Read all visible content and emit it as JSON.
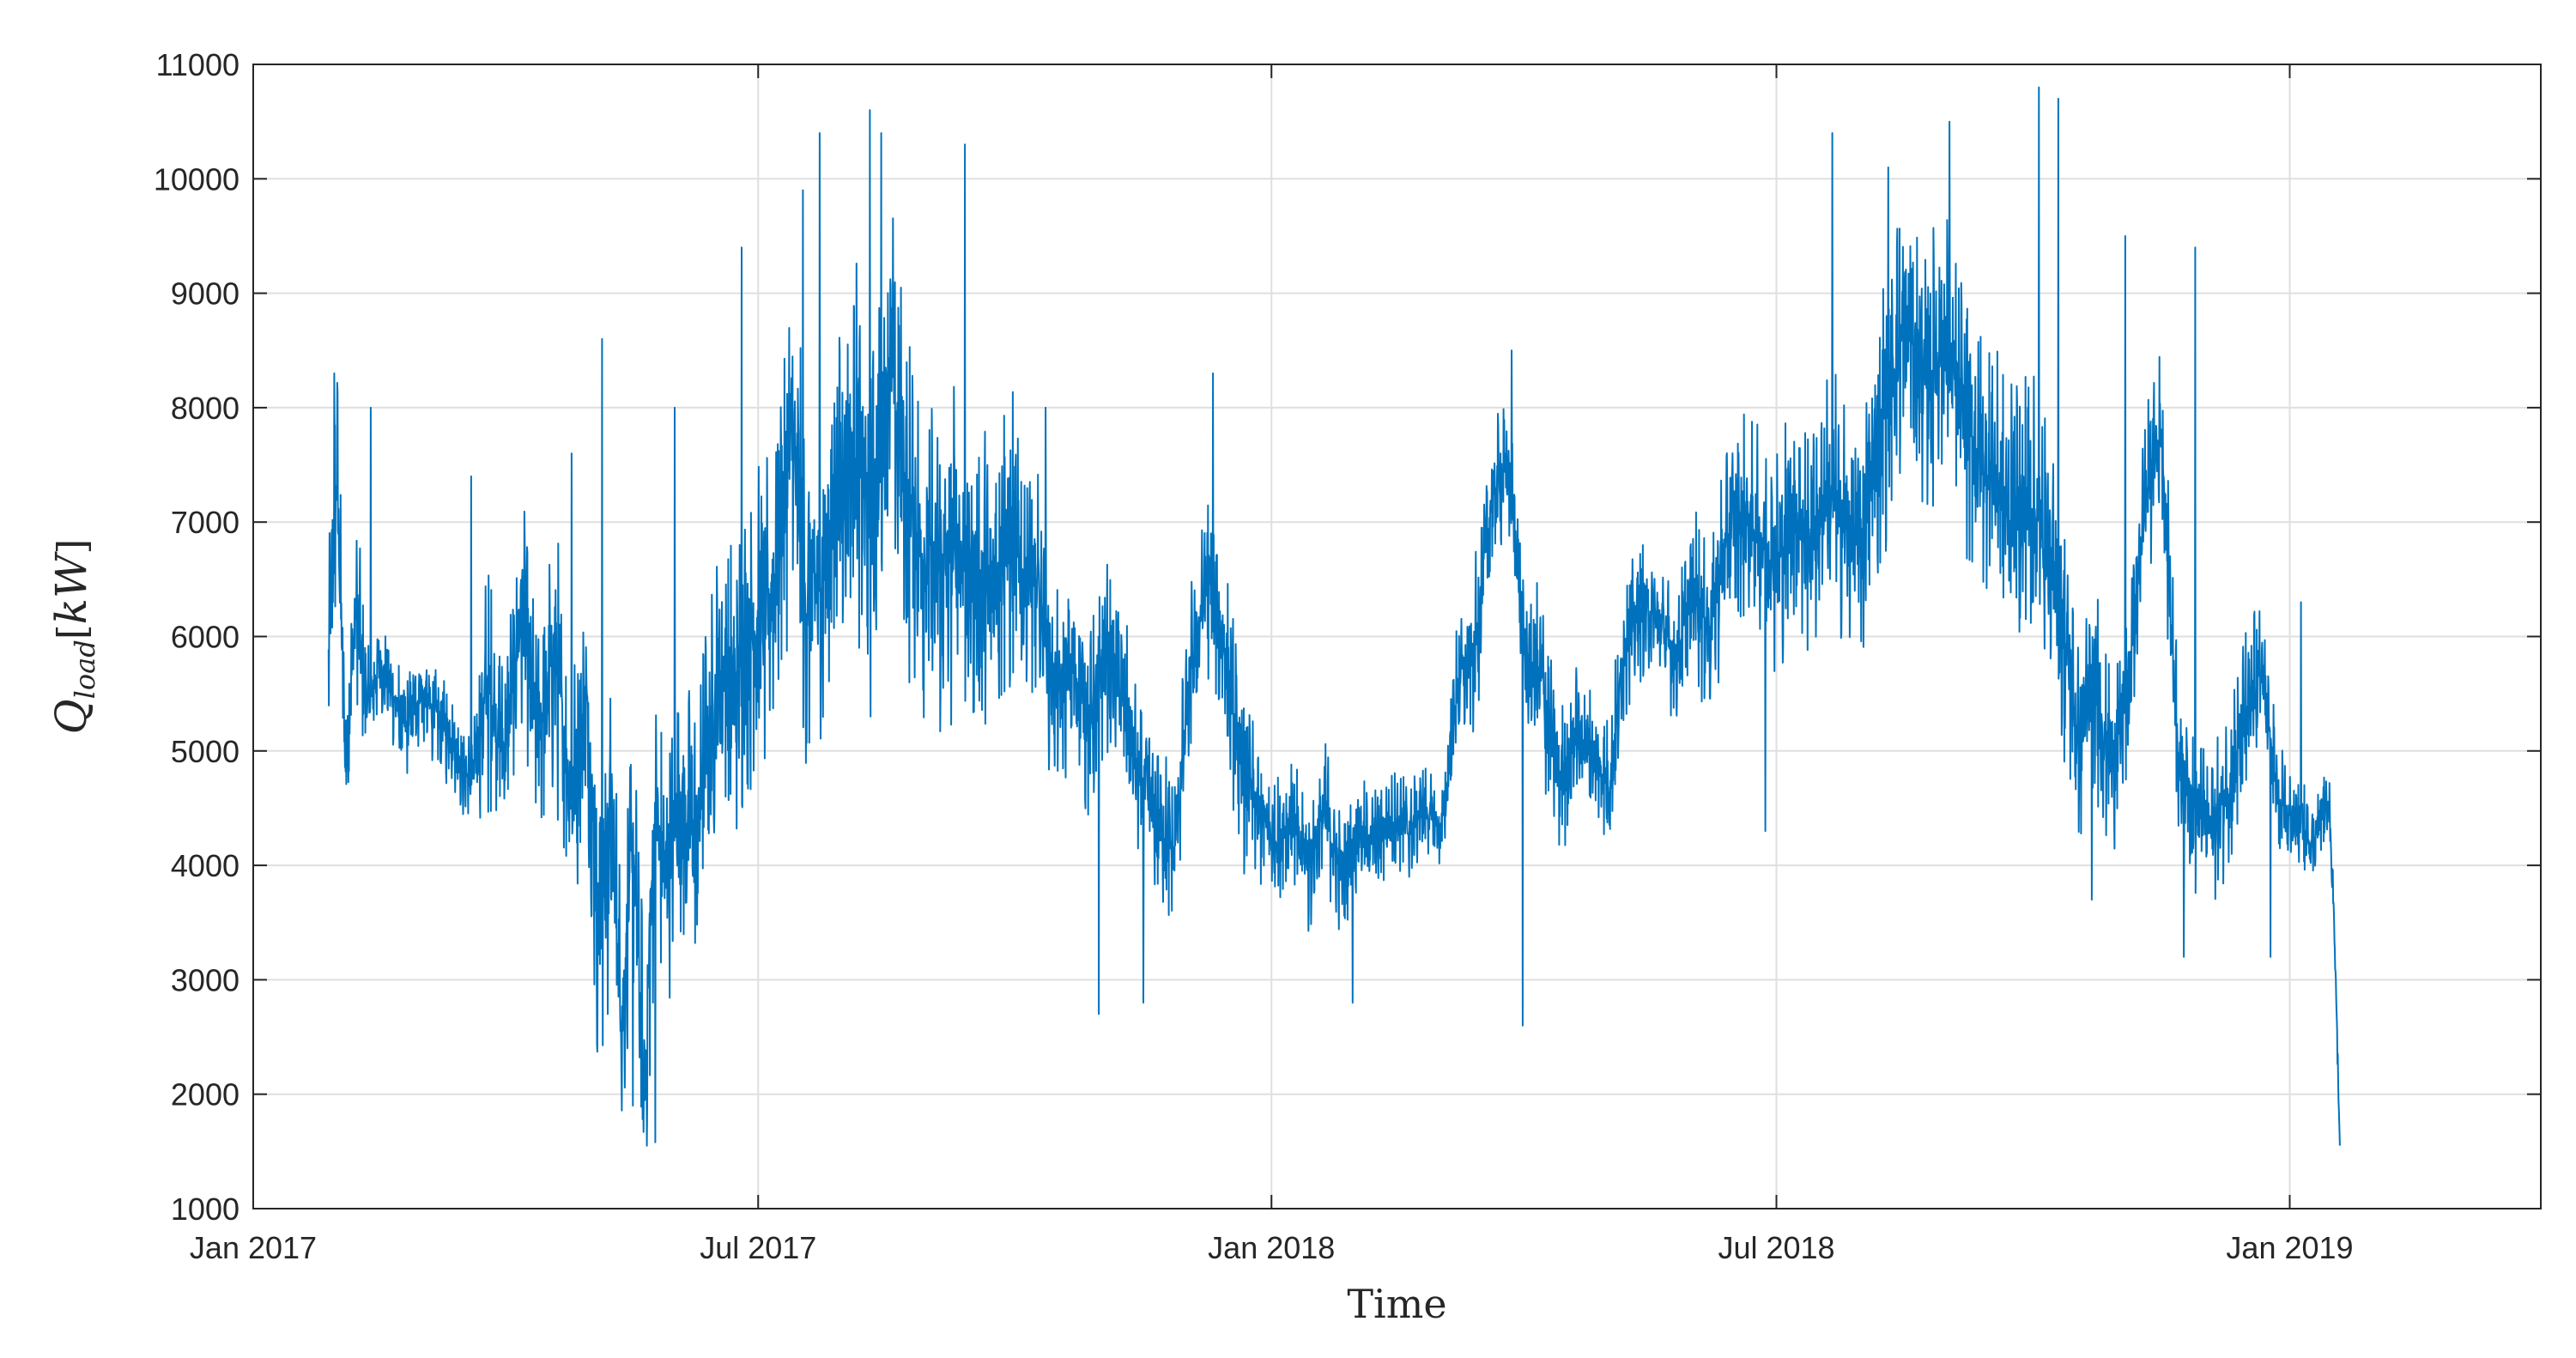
{
  "chart_data": {
    "type": "line",
    "title": "",
    "xlabel": "Time",
    "ylabel": {
      "main": "Q",
      "subscript": "load",
      "bracket_open": "[",
      "unit": "kW",
      "bracket_close": "]"
    },
    "xlim": [
      "2017-01-01",
      "2019-04-01"
    ],
    "ylim": [
      1000,
      11000
    ],
    "x_ticks": [
      {
        "date": "2017-01-01",
        "label": "Jan 2017"
      },
      {
        "date": "2017-07-01",
        "label": "Jul 2017"
      },
      {
        "date": "2018-01-01",
        "label": "Jan 2018"
      },
      {
        "date": "2018-07-01",
        "label": "Jul 2018"
      },
      {
        "date": "2019-01-01",
        "label": "Jan 2019"
      }
    ],
    "y_ticks": [
      1000,
      2000,
      3000,
      4000,
      5000,
      6000,
      7000,
      8000,
      9000,
      10000,
      11000
    ],
    "grid": true,
    "line_color": "#0072BD",
    "series": [
      {
        "points": [
          [
            "2017-01-28",
            5700
          ],
          [
            "2017-01-31",
            7400
          ],
          [
            "2017-02-03",
            4900
          ],
          [
            "2017-02-07",
            6300
          ],
          [
            "2017-02-11",
            5300
          ],
          [
            "2017-02-15",
            5800
          ],
          [
            "2017-02-20",
            5500
          ],
          [
            "2017-02-25",
            5200
          ],
          [
            "2017-03-02",
            5500
          ],
          [
            "2017-03-08",
            5300
          ],
          [
            "2017-03-14",
            5100
          ],
          [
            "2017-03-20",
            4700
          ],
          [
            "2017-03-26",
            5600
          ],
          [
            "2017-04-01",
            5000
          ],
          [
            "2017-04-07",
            6200
          ],
          [
            "2017-04-13",
            5100
          ],
          [
            "2017-04-19",
            5900
          ],
          [
            "2017-04-25",
            4600
          ],
          [
            "2017-05-01",
            5400
          ],
          [
            "2017-05-05",
            3300
          ],
          [
            "2017-05-09",
            4700
          ],
          [
            "2017-05-13",
            2600
          ],
          [
            "2017-05-17",
            4200
          ],
          [
            "2017-05-21",
            2000
          ],
          [
            "2017-05-25",
            4400
          ],
          [
            "2017-05-29",
            3900
          ],
          [
            "2017-06-03",
            4600
          ],
          [
            "2017-06-08",
            4200
          ],
          [
            "2017-06-13",
            5200
          ],
          [
            "2017-06-18",
            5700
          ],
          [
            "2017-06-23",
            5600
          ],
          [
            "2017-06-28",
            6100
          ],
          [
            "2017-07-03",
            6000
          ],
          [
            "2017-07-08",
            6700
          ],
          [
            "2017-07-13",
            7900
          ],
          [
            "2017-07-18",
            6300
          ],
          [
            "2017-07-24",
            6500
          ],
          [
            "2017-07-30",
            7200
          ],
          [
            "2017-08-05",
            7700
          ],
          [
            "2017-08-11",
            6900
          ],
          [
            "2017-08-17",
            8500
          ],
          [
            "2017-08-23",
            7200
          ],
          [
            "2017-08-29",
            6700
          ],
          [
            "2017-09-04",
            6600
          ],
          [
            "2017-09-10",
            6800
          ],
          [
            "2017-09-16",
            6600
          ],
          [
            "2017-09-22",
            6300
          ],
          [
            "2017-09-28",
            6900
          ],
          [
            "2017-10-04",
            6500
          ],
          [
            "2017-10-10",
            6300
          ],
          [
            "2017-10-16",
            5500
          ],
          [
            "2017-10-22",
            5700
          ],
          [
            "2017-10-28",
            5200
          ],
          [
            "2017-11-03",
            5900
          ],
          [
            "2017-11-09",
            5400
          ],
          [
            "2017-11-15",
            4700
          ],
          [
            "2017-11-21",
            4400
          ],
          [
            "2017-11-27",
            4100
          ],
          [
            "2017-12-03",
            5700
          ],
          [
            "2017-12-09",
            6500
          ],
          [
            "2017-12-15",
            5900
          ],
          [
            "2017-12-21",
            4800
          ],
          [
            "2017-12-27",
            4500
          ],
          [
            "2018-01-02",
            4200
          ],
          [
            "2018-01-08",
            4400
          ],
          [
            "2018-01-14",
            4000
          ],
          [
            "2018-01-20",
            4500
          ],
          [
            "2018-01-26",
            3900
          ],
          [
            "2018-02-01",
            4300
          ],
          [
            "2018-02-07",
            4200
          ],
          [
            "2018-02-13",
            4400
          ],
          [
            "2018-02-19",
            4300
          ],
          [
            "2018-02-25",
            4500
          ],
          [
            "2018-03-03",
            4300
          ],
          [
            "2018-03-09",
            5600
          ],
          [
            "2018-03-15",
            5900
          ],
          [
            "2018-03-21",
            7200
          ],
          [
            "2018-03-27",
            7500
          ],
          [
            "2018-04-02",
            5800
          ],
          [
            "2018-04-08",
            5600
          ],
          [
            "2018-04-14",
            4700
          ],
          [
            "2018-04-20",
            5100
          ],
          [
            "2018-04-26",
            5000
          ],
          [
            "2018-05-02",
            4700
          ],
          [
            "2018-05-08",
            6000
          ],
          [
            "2018-05-14",
            6300
          ],
          [
            "2018-05-20",
            6100
          ],
          [
            "2018-05-26",
            5800
          ],
          [
            "2018-06-01",
            6400
          ],
          [
            "2018-06-07",
            6100
          ],
          [
            "2018-06-13",
            6800
          ],
          [
            "2018-06-19",
            7100
          ],
          [
            "2018-06-25",
            6900
          ],
          [
            "2018-07-01",
            6600
          ],
          [
            "2018-07-07",
            7100
          ],
          [
            "2018-07-13",
            6800
          ],
          [
            "2018-07-19",
            7300
          ],
          [
            "2018-07-25",
            7000
          ],
          [
            "2018-07-31",
            6800
          ],
          [
            "2018-08-06",
            7600
          ],
          [
            "2018-08-12",
            8400
          ],
          [
            "2018-08-18",
            8800
          ],
          [
            "2018-08-24",
            8200
          ],
          [
            "2018-08-30",
            8600
          ],
          [
            "2018-09-05",
            8000
          ],
          [
            "2018-09-11",
            7600
          ],
          [
            "2018-09-17",
            7400
          ],
          [
            "2018-09-23",
            7000
          ],
          [
            "2018-09-29",
            7200
          ],
          [
            "2018-10-05",
            6800
          ],
          [
            "2018-10-11",
            6200
          ],
          [
            "2018-10-17",
            5100
          ],
          [
            "2018-10-23",
            5600
          ],
          [
            "2018-10-29",
            4900
          ],
          [
            "2018-11-04",
            5500
          ],
          [
            "2018-11-10",
            7200
          ],
          [
            "2018-11-16",
            7800
          ],
          [
            "2018-11-22",
            5000
          ],
          [
            "2018-11-28",
            4500
          ],
          [
            "2018-12-04",
            4300
          ],
          [
            "2018-12-10",
            4700
          ],
          [
            "2018-12-16",
            5200
          ],
          [
            "2018-12-22",
            5700
          ],
          [
            "2018-12-28",
            4500
          ],
          [
            "2019-01-03",
            4400
          ],
          [
            "2019-01-09",
            4200
          ],
          [
            "2019-01-15",
            4600
          ],
          [
            "2019-01-17",
            3500
          ],
          [
            "2019-01-19",
            1500
          ]
        ],
        "amplitude": [
          1100,
          1300,
          700,
          900,
          600,
          500,
          500,
          500,
          500,
          500,
          500,
          500,
          1200,
          800,
          1200,
          1000,
          1400,
          1100,
          1400,
          1500,
          1400,
          1200,
          1300,
          1400,
          1300,
          1200,
          1400,
          1300,
          1400,
          1300,
          1400,
          1600,
          1500,
          1500,
          1700,
          1700,
          1700,
          1700,
          1700,
          1800,
          1700,
          1700,
          1600,
          1600,
          1600,
          1600,
          1600,
          1600,
          1400,
          1200,
          900,
          900,
          900,
          900,
          900,
          800,
          800,
          800,
          900,
          1000,
          900,
          900,
          700,
          600,
          600,
          700,
          700,
          600,
          500,
          500,
          500,
          500,
          400,
          400,
          700,
          800,
          700,
          700,
          800,
          900,
          700,
          700,
          600,
          600,
          700,
          700,
          600,
          600,
          800,
          900,
          900,
          1000,
          1000,
          1100,
          1100,
          1100,
          1200,
          1200,
          1200,
          1400,
          1300,
          1300,
          1300,
          1300,
          1300,
          1200,
          1200,
          1200,
          1300,
          1200,
          1200,
          1000,
          1100,
          900,
          900,
          800,
          800,
          900,
          800,
          700,
          800,
          900,
          800,
          600,
          500,
          400,
          300,
          200,
          100
        ],
        "spikes": [
          [
            "2017-01-30",
            8300
          ],
          [
            "2017-02-12",
            8000
          ],
          [
            "2017-03-20",
            7400
          ],
          [
            "2017-04-25",
            7600
          ],
          [
            "2017-05-06",
            8600
          ],
          [
            "2017-05-08",
            2700
          ],
          [
            "2017-05-17",
            1900
          ],
          [
            "2017-05-22",
            1550
          ],
          [
            "2017-05-25",
            1580
          ],
          [
            "2017-06-01",
            8000
          ],
          [
            "2017-06-25",
            9400
          ],
          [
            "2017-07-17",
            9900
          ],
          [
            "2017-07-23",
            10400
          ],
          [
            "2017-08-10",
            10600
          ],
          [
            "2017-08-14",
            10400
          ],
          [
            "2017-09-13",
            10300
          ],
          [
            "2017-10-12",
            8000
          ],
          [
            "2017-10-31",
            2700
          ],
          [
            "2017-11-16",
            2800
          ],
          [
            "2017-12-11",
            8300
          ],
          [
            "2018-01-30",
            2800
          ],
          [
            "2018-03-28",
            8500
          ],
          [
            "2018-04-01",
            2600
          ],
          [
            "2018-06-27",
            4300
          ],
          [
            "2018-07-21",
            10400
          ],
          [
            "2018-08-10",
            10100
          ],
          [
            "2018-09-01",
            10500
          ],
          [
            "2018-10-03",
            10800
          ],
          [
            "2018-10-10",
            10700
          ],
          [
            "2018-10-22",
            3700
          ],
          [
            "2018-11-03",
            9500
          ],
          [
            "2018-11-24",
            3200
          ],
          [
            "2018-11-28",
            9400
          ],
          [
            "2018-12-25",
            3200
          ],
          [
            "2019-01-05",
            6300
          ]
        ]
      }
    ]
  }
}
